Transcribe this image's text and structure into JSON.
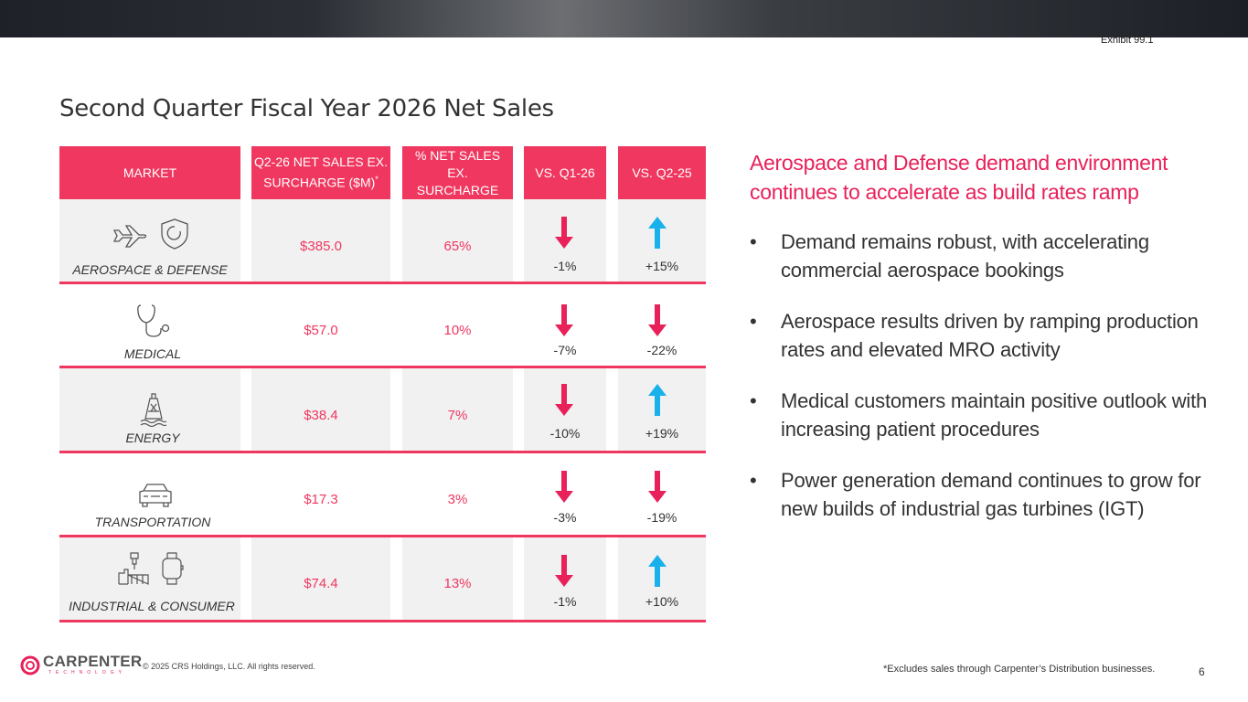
{
  "exhibit": "Exhibit 99.1",
  "title": "Second Quarter Fiscal Year 2026 Net Sales",
  "table": {
    "headers": {
      "market": "MARKET",
      "net_sales_line1": "Q2-26 NET SALES EX.",
      "net_sales_line2": "SURCHARGE ($M)",
      "net_sales_mark": "*",
      "pct_line1": "% NET SALES EX.",
      "pct_line2": "SURCHARGE",
      "vs_q1": "VS. Q1-26",
      "vs_q2": "VS. Q2-25"
    },
    "rows": [
      {
        "market": "AEROSPACE & DEFENSE",
        "icons": [
          "airplane-icon",
          "shield-icon"
        ],
        "net_sales": "$385.0",
        "pct": "65%",
        "vs_q1": "-1%",
        "vs_q1_dir": "down",
        "vs_q2": "+15%",
        "vs_q2_dir": "up"
      },
      {
        "market": "MEDICAL",
        "icons": [
          "stethoscope-icon"
        ],
        "net_sales": "$57.0",
        "pct": "10%",
        "vs_q1": "-7%",
        "vs_q1_dir": "down",
        "vs_q2": "-22%",
        "vs_q2_dir": "down"
      },
      {
        "market": "ENERGY",
        "icons": [
          "oil-rig-icon"
        ],
        "net_sales": "$38.4",
        "pct": "7%",
        "vs_q1": "-10%",
        "vs_q1_dir": "down",
        "vs_q2": "+19%",
        "vs_q2_dir": "up"
      },
      {
        "market": "TRANSPORTATION",
        "icons": [
          "car-icon"
        ],
        "net_sales": "$17.3",
        "pct": "3%",
        "vs_q1": "-3%",
        "vs_q1_dir": "down",
        "vs_q2": "-19%",
        "vs_q2_dir": "down"
      },
      {
        "market": "INDUSTRIAL & CONSUMER",
        "icons": [
          "factory-drill-icon",
          "smartwatch-icon"
        ],
        "net_sales": "$74.4",
        "pct": "13%",
        "vs_q1": "-1%",
        "vs_q1_dir": "down",
        "vs_q2": "+10%",
        "vs_q2_dir": "up"
      }
    ]
  },
  "headline": "Aerospace and Defense demand environment continues to accelerate as build rates ramp",
  "bullets": [
    "Demand remains robust, with accelerating commercial aerospace bookings",
    "Aerospace results driven by ramping production rates and elevated MRO activity",
    "Medical customers maintain positive outlook with increasing patient procedures",
    "Power generation demand continues to grow for new builds of industrial gas turbines (IGT)"
  ],
  "bullet_char": "•",
  "footer": {
    "logo_name": "CARPENTER",
    "logo_sub": "TECHNOLOGY",
    "copyright": "© 2025 CRS Holdings, LLC. All rights reserved.",
    "footnote": "*Excludes sales through Carpenter’s Distribution businesses.",
    "page_number": "6"
  },
  "colors": {
    "accent": "#f0375f",
    "up": "#19b1ea",
    "down": "#e8215a",
    "cell_bg": "#f1f1f2"
  }
}
